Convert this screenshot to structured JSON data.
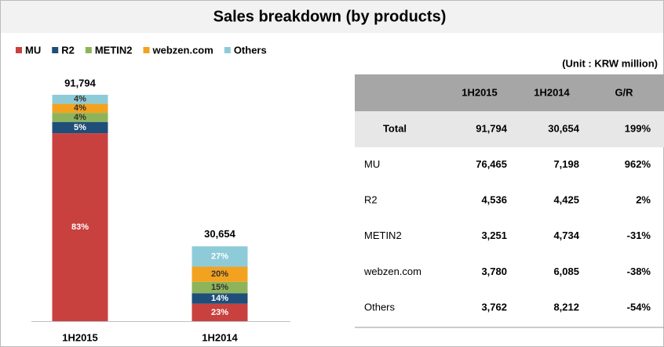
{
  "title": "Sales breakdown (by products)",
  "chart_data": {
    "type": "stacked_bar",
    "categories": [
      "1H2015",
      "1H2014"
    ],
    "totals": {
      "values": [
        91794,
        30654
      ],
      "value_labels": [
        "91,794",
        "30,654"
      ]
    },
    "series": [
      {
        "name": "MU",
        "color": "#c8413f",
        "values": [
          83,
          23
        ],
        "value_labels": [
          "83%",
          "23%"
        ]
      },
      {
        "name": "R2",
        "color": "#1f4e79",
        "values": [
          5,
          14
        ],
        "value_labels": [
          "5%",
          "14%"
        ]
      },
      {
        "name": "METIN2",
        "color": "#8db45a",
        "values": [
          4,
          15
        ],
        "value_labels": [
          "4%",
          "15%"
        ]
      },
      {
        "name": "webzen.com",
        "color": "#f3a21f",
        "values": [
          4,
          20
        ],
        "value_labels": [
          "4%",
          "20%"
        ]
      },
      {
        "name": "Others",
        "color": "#8ecbd8",
        "values": [
          4,
          27
        ],
        "value_labels": [
          "4%",
          "27%"
        ]
      }
    ]
  },
  "table": {
    "unit": "(Unit : KRW million)",
    "header": [
      "1H2015",
      "1H2014",
      "G/R"
    ],
    "rows": [
      [
        "Total",
        "91,794",
        "30,654",
        "199%"
      ],
      [
        "MU",
        "76,465",
        "7,198",
        "962%"
      ],
      [
        "R2",
        "4,536",
        "4,425",
        "2%"
      ],
      [
        "METIN2",
        "3,251",
        "4,734",
        "-31%"
      ],
      [
        "webzen.com",
        "3,780",
        "6,085",
        "-38%"
      ],
      [
        "Others",
        "3,762",
        "8,212",
        "-54%"
      ]
    ]
  }
}
